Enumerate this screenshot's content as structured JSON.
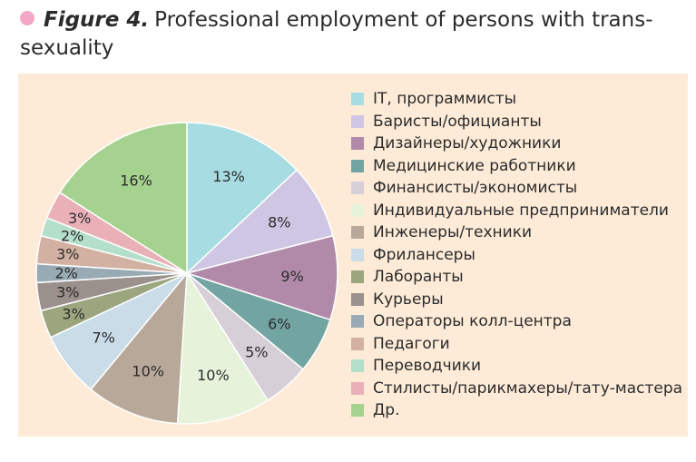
{
  "caption": {
    "figure_label": "Figure 4.",
    "title": "Professional employment of persons with trans-sexuality",
    "bullet_color": "#f2a7c4"
  },
  "chart_data": {
    "type": "pie",
    "start": "12 o'clock, clockwise",
    "slices": [
      {
        "label": "IT, программисты",
        "value": 13,
        "display": "13%",
        "color": "#a7dde2"
      },
      {
        "label": "Баристы/официанты",
        "value": 8,
        "display": "8%",
        "color": "#cfc6e4"
      },
      {
        "label": "Дизайнеры/художники",
        "value": 9,
        "display": "9%",
        "color": "#b28aa9"
      },
      {
        "label": "Медицинские работники",
        "value": 6,
        "display": "6%",
        "color": "#72a5a2"
      },
      {
        "label": "Финансисты/экономисты",
        "value": 5,
        "display": "5%",
        "color": "#d6cfd8"
      },
      {
        "label": "Индивидуальные предприниматели",
        "value": 10,
        "display": "10%",
        "color": "#e6f2d9"
      },
      {
        "label": "Инженеры/техники",
        "value": 10,
        "display": "10%",
        "color": "#b8a89a"
      },
      {
        "label": "Фрилансеры",
        "value": 7,
        "display": "7%",
        "color": "#c9dce8"
      },
      {
        "label": "Лаборанты",
        "value": 3,
        "display": "3%",
        "color": "#9ba67e"
      },
      {
        "label": "Курьеры",
        "value": 3,
        "display": "3%",
        "color": "#9a908c"
      },
      {
        "label": "Операторы колл-центра",
        "value": 2,
        "display": "2%",
        "color": "#98abb4"
      },
      {
        "label": "Педагоги",
        "value": 3,
        "display": "3%",
        "color": "#d3b1a2"
      },
      {
        "label": "Переводчики",
        "value": 2,
        "display": "2%",
        "color": "#b4dfcb"
      },
      {
        "label": "Стилисты/парикмахеры/тату-мастера",
        "value": 3,
        "display": "3%",
        "color": "#e9b0b8"
      },
      {
        "label": "Др.",
        "value": 16,
        "display": "16%",
        "color": "#a5d38f"
      }
    ]
  }
}
